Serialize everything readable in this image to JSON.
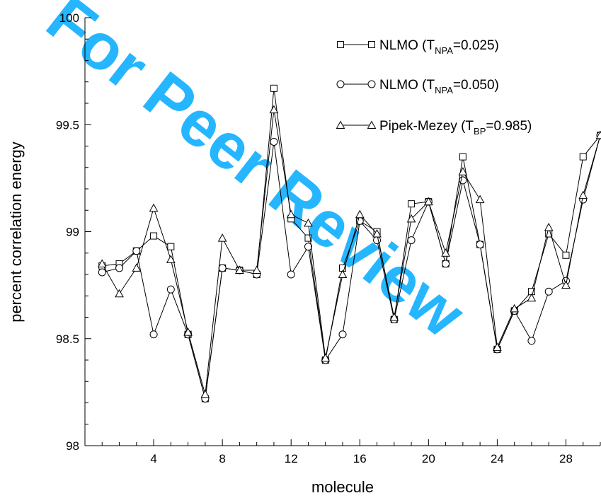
{
  "watermark": {
    "text": "For Peer Review",
    "color": "#00aaff"
  },
  "chart_data": {
    "type": "line",
    "title": "",
    "xlabel": "molecule",
    "ylabel": "percent correlation energy",
    "xlim": [
      0,
      30
    ],
    "ylim": [
      98,
      100
    ],
    "x_ticks": [
      4,
      8,
      12,
      16,
      20,
      24,
      28
    ],
    "y_ticks": [
      98,
      98.5,
      99,
      99.5,
      100
    ],
    "y_tick_labels": [
      "98",
      "98.5",
      "99",
      "99.5",
      "100"
    ],
    "grid": false,
    "legend_position": "top-right",
    "x": [
      1,
      2,
      3,
      4,
      5,
      6,
      7,
      8,
      9,
      10,
      11,
      12,
      13,
      14,
      15,
      16,
      17,
      18,
      19,
      20,
      21,
      22,
      23,
      24,
      25,
      26,
      27,
      28,
      29,
      30
    ],
    "series": [
      {
        "marker": "square",
        "legend": {
          "prefix": "NLMO (T",
          "sub": "NPA",
          "suffix": "=0.025)"
        },
        "values": [
          98.84,
          98.85,
          98.91,
          98.98,
          98.93,
          98.52,
          98.22,
          98.83,
          98.82,
          98.8,
          99.67,
          99.06,
          98.97,
          98.4,
          98.83,
          99.05,
          99.0,
          98.59,
          99.13,
          99.14,
          98.85,
          99.35,
          98.94,
          98.45,
          98.63,
          98.72,
          98.99,
          98.89,
          99.35,
          99.45
        ]
      },
      {
        "marker": "circle",
        "legend": {
          "prefix": "NLMO (T",
          "sub": "NPA",
          "suffix": "=0.050)"
        },
        "values": [
          98.81,
          98.83,
          98.91,
          98.52,
          98.73,
          98.52,
          98.22,
          98.83,
          98.82,
          98.8,
          99.42,
          98.8,
          98.93,
          98.4,
          98.52,
          99.05,
          98.96,
          98.59,
          98.96,
          99.14,
          98.85,
          99.24,
          98.94,
          98.45,
          98.63,
          98.49,
          98.72,
          98.77,
          99.15,
          99.45
        ]
      },
      {
        "marker": "triangle",
        "legend": {
          "prefix": "Pipek-Mezey (T",
          "sub": "BP",
          "suffix": "=0.985)"
        },
        "values": [
          98.85,
          98.71,
          98.83,
          99.11,
          98.87,
          98.53,
          98.24,
          98.97,
          98.82,
          98.82,
          99.57,
          99.08,
          99.04,
          98.41,
          98.8,
          99.08,
          98.99,
          98.6,
          99.06,
          99.14,
          98.9,
          99.28,
          99.15,
          98.46,
          98.64,
          98.69,
          99.02,
          98.75,
          99.17,
          99.45
        ]
      }
    ]
  }
}
